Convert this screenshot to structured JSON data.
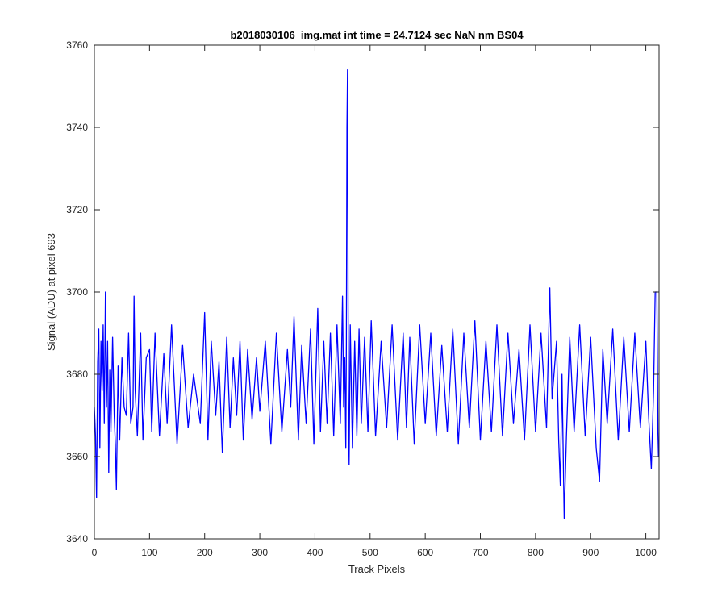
{
  "chart_data": {
    "type": "line",
    "title": "b2018030106_img.mat int time = 24.7124 sec  NaN nm BS04",
    "xlabel": "Track Pixels",
    "ylabel": "Signal (ADU) at pixel 693",
    "xlim": [
      0,
      1024
    ],
    "ylim": [
      3640,
      3760
    ],
    "xticks": [
      0,
      100,
      200,
      300,
      400,
      500,
      600,
      700,
      800,
      900,
      1000
    ],
    "yticks": [
      3640,
      3660,
      3680,
      3700,
      3720,
      3740,
      3760
    ],
    "grid": false,
    "box": true,
    "series": [
      {
        "color": "#0000ff",
        "x": [
          0,
          2,
          4,
          6,
          8,
          10,
          12,
          14,
          16,
          18,
          20,
          22,
          24,
          26,
          28,
          30,
          33,
          36,
          38,
          40,
          43,
          46,
          50,
          54,
          58,
          62,
          66,
          70,
          72,
          74,
          78,
          84,
          88,
          94,
          100,
          104,
          110,
          118,
          126,
          132,
          140,
          150,
          160,
          170,
          180,
          192,
          200,
          206,
          212,
          220,
          226,
          232,
          240,
          246,
          252,
          258,
          264,
          270,
          278,
          286,
          294,
          300,
          310,
          320,
          330,
          340,
          350,
          356,
          362,
          370,
          376,
          384,
          392,
          398,
          405,
          410,
          416,
          422,
          428,
          434,
          440,
          446,
          450,
          452,
          454,
          456,
          457,
          458,
          459,
          460,
          461,
          462,
          464,
          468,
          472,
          476,
          480,
          484,
          490,
          496,
          502,
          510,
          520,
          530,
          540,
          550,
          560,
          566,
          572,
          580,
          590,
          600,
          610,
          620,
          630,
          640,
          650,
          660,
          670,
          680,
          690,
          700,
          710,
          720,
          730,
          740,
          750,
          760,
          770,
          780,
          790,
          800,
          810,
          820,
          826,
          830,
          838,
          842,
          845,
          848,
          852,
          856,
          862,
          870,
          880,
          890,
          900,
          910,
          916,
          922,
          930,
          940,
          950,
          960,
          970,
          980,
          990,
          1000,
          1005,
          1010,
          1014,
          1017,
          1020,
          1022,
          1023
        ],
        "y": [
          3672,
          3665,
          3650,
          3683,
          3691,
          3662,
          3688,
          3676,
          3692,
          3668,
          3700,
          3672,
          3688,
          3656,
          3681,
          3666,
          3689,
          3670,
          3663,
          3652,
          3682,
          3664,
          3684,
          3672,
          3670,
          3690,
          3668,
          3672,
          3699,
          3676,
          3665,
          3690,
          3664,
          3684,
          3686,
          3666,
          3690,
          3665,
          3685,
          3668,
          3692,
          3663,
          3687,
          3667,
          3680,
          3668,
          3695,
          3664,
          3688,
          3670,
          3683,
          3661,
          3689,
          3667,
          3684,
          3670,
          3688,
          3664,
          3686,
          3669,
          3684,
          3671,
          3688,
          3663,
          3690,
          3666,
          3686,
          3672,
          3694,
          3664,
          3687,
          3668,
          3691,
          3663,
          3696,
          3666,
          3688,
          3668,
          3690,
          3665,
          3692,
          3668,
          3699,
          3672,
          3684,
          3662,
          3688,
          3740,
          3754,
          3700,
          3670,
          3658,
          3692,
          3662,
          3688,
          3665,
          3691,
          3668,
          3689,
          3666,
          3693,
          3665,
          3688,
          3667,
          3692,
          3664,
          3690,
          3667,
          3689,
          3663,
          3692,
          3668,
          3690,
          3665,
          3687,
          3666,
          3691,
          3663,
          3690,
          3667,
          3693,
          3664,
          3688,
          3666,
          3692,
          3665,
          3690,
          3668,
          3686,
          3664,
          3692,
          3666,
          3690,
          3667,
          3701,
          3674,
          3688,
          3664,
          3653,
          3680,
          3645,
          3665,
          3689,
          3666,
          3692,
          3665,
          3689,
          3662,
          3654,
          3686,
          3668,
          3691,
          3664,
          3689,
          3666,
          3690,
          3667,
          3688,
          3670,
          3657,
          3676,
          3700,
          3700,
          3666,
          3660
        ]
      }
    ]
  }
}
